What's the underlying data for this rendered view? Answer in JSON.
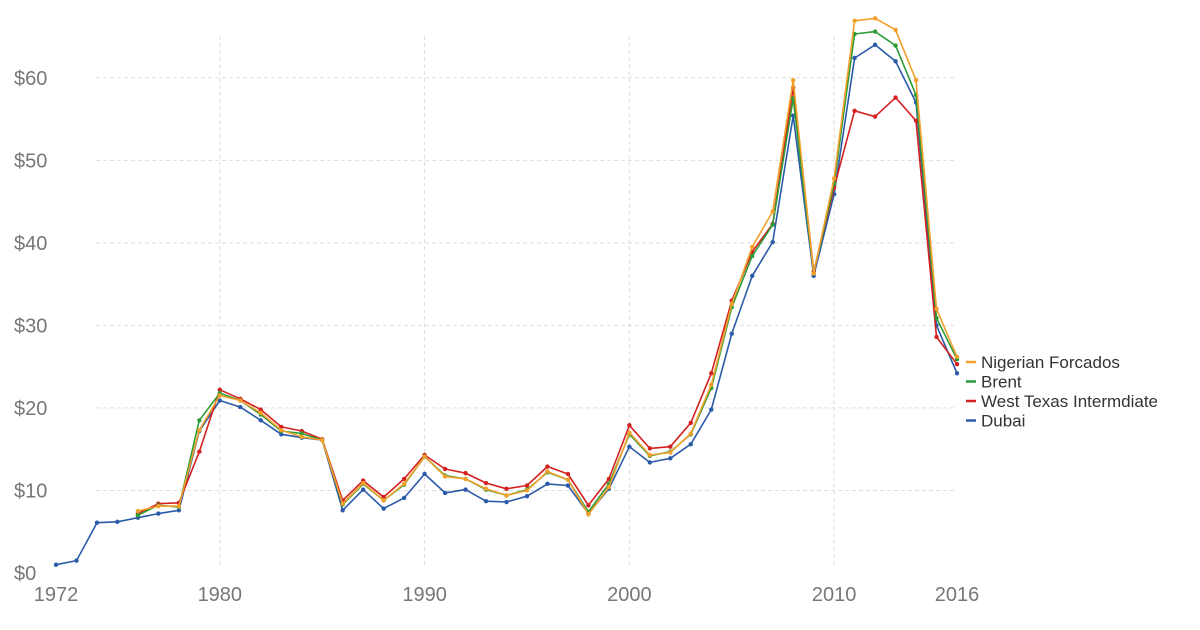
{
  "chart_data": {
    "type": "line",
    "title": "",
    "xlabel": "",
    "ylabel": "",
    "xlim": [
      1972,
      2016
    ],
    "ylim": [
      0,
      67
    ],
    "x_ticks": [
      {
        "value": 1972,
        "label": "1972"
      },
      {
        "value": 1980,
        "label": "1980"
      },
      {
        "value": 1990,
        "label": "1990"
      },
      {
        "value": 2000,
        "label": "2000"
      },
      {
        "value": 2010,
        "label": "2010"
      },
      {
        "value": 2016,
        "label": "2016"
      }
    ],
    "y_ticks": [
      {
        "value": 0,
        "label": "$0"
      },
      {
        "value": 10,
        "label": "$10"
      },
      {
        "value": 20,
        "label": "$20"
      },
      {
        "value": 30,
        "label": "$30"
      },
      {
        "value": 40,
        "label": "$40"
      },
      {
        "value": 50,
        "label": "$50"
      },
      {
        "value": 60,
        "label": "$60"
      }
    ],
    "grid": true,
    "legend_position": "right",
    "series": [
      {
        "name": "Dubai",
        "color": "#2b5ba8",
        "x": [
          1972,
          1973,
          1974,
          1975,
          1976,
          1977,
          1978,
          1979,
          1980,
          1981,
          1982,
          1983,
          1984,
          1985,
          1986,
          1987,
          1988,
          1989,
          1990,
          1991,
          1992,
          1993,
          1994,
          1995,
          1996,
          1997,
          1998,
          1999,
          2000,
          2001,
          2002,
          2003,
          2004,
          2005,
          2006,
          2007,
          2008,
          2009,
          2010,
          2011,
          2012,
          2013,
          2014,
          2015,
          2016
        ],
        "y": [
          1.0,
          1.5,
          6.1,
          6.2,
          6.7,
          7.2,
          7.6,
          17.2,
          20.9,
          20.1,
          18.5,
          16.8,
          16.4,
          16.1,
          7.6,
          10.1,
          7.8,
          9.1,
          12.0,
          9.7,
          10.1,
          8.7,
          8.6,
          9.3,
          10.8,
          10.6,
          7.2,
          10.2,
          15.3,
          13.4,
          13.9,
          15.6,
          19.8,
          29.0,
          36.0,
          40.1,
          55.4,
          36.0,
          45.9,
          62.4,
          64.0,
          62.0,
          57.0,
          30.0,
          24.2
        ]
      },
      {
        "name": "West Texas Intermdiate",
        "color": "#d42020",
        "x": [
          1976,
          1977,
          1978,
          1979,
          1980,
          1981,
          1982,
          1983,
          1984,
          1985,
          1986,
          1987,
          1988,
          1989,
          1990,
          1991,
          1992,
          1993,
          1994,
          1995,
          1996,
          1997,
          1998,
          1999,
          2000,
          2001,
          2002,
          2003,
          2004,
          2005,
          2006,
          2007,
          2008,
          2009,
          2010,
          2011,
          2012,
          2013,
          2014,
          2015,
          2016
        ],
        "y": [
          7.2,
          8.4,
          8.5,
          14.7,
          22.2,
          21.1,
          19.8,
          17.7,
          17.2,
          16.2,
          8.8,
          11.2,
          9.2,
          11.4,
          14.3,
          12.6,
          12.1,
          10.9,
          10.2,
          10.6,
          12.9,
          12.0,
          8.2,
          11.4,
          17.9,
          15.1,
          15.3,
          18.2,
          24.2,
          33.0,
          38.9,
          42.3,
          58.8,
          36.5,
          46.7,
          56.0,
          55.3,
          57.6,
          54.8,
          28.6,
          25.3
        ]
      },
      {
        "name": "Brent",
        "color": "#2e9c36",
        "x": [
          1976,
          1977,
          1978,
          1979,
          1980,
          1981,
          1982,
          1983,
          1984,
          1985,
          1986,
          1987,
          1988,
          1989,
          1990,
          1991,
          1992,
          1993,
          1994,
          1995,
          1996,
          1997,
          1998,
          1999,
          2000,
          2001,
          2002,
          2003,
          2004,
          2005,
          2006,
          2007,
          2008,
          2009,
          2010,
          2011,
          2012,
          2013,
          2014,
          2015,
          2016
        ],
        "y": [
          7.0,
          8.2,
          8.0,
          18.5,
          21.8,
          20.9,
          19.2,
          17.2,
          16.9,
          16.1,
          8.3,
          10.8,
          8.8,
          10.7,
          14.1,
          11.8,
          11.4,
          10.1,
          9.4,
          10.1,
          12.2,
          11.3,
          7.4,
          10.8,
          16.8,
          14.2,
          14.7,
          16.8,
          22.4,
          32.2,
          38.4,
          42.2,
          57.5,
          36.3,
          47.2,
          65.3,
          65.6,
          63.9,
          57.9,
          30.9,
          25.9
        ]
      },
      {
        "name": "Nigerian Forcados",
        "color": "#f2a02a",
        "x": [
          1976,
          1977,
          1978,
          1979,
          1980,
          1981,
          1982,
          1983,
          1984,
          1985,
          1986,
          1987,
          1988,
          1989,
          1990,
          1991,
          1992,
          1993,
          1994,
          1995,
          1996,
          1997,
          1998,
          1999,
          2000,
          2001,
          2002,
          2003,
          2004,
          2005,
          2006,
          2007,
          2008,
          2009,
          2010,
          2011,
          2012,
          2013,
          2014,
          2015,
          2016
        ],
        "y": [
          7.5,
          8.1,
          8.1,
          17.3,
          21.5,
          20.9,
          19.4,
          17.3,
          16.5,
          16.1,
          8.4,
          10.9,
          8.8,
          10.8,
          14.1,
          11.7,
          11.4,
          10.2,
          9.4,
          10.0,
          12.3,
          11.3,
          7.1,
          10.4,
          17.0,
          14.3,
          14.6,
          16.9,
          22.8,
          32.6,
          39.5,
          43.8,
          59.7,
          36.3,
          47.8,
          66.9,
          67.2,
          65.8,
          59.7,
          32.0,
          26.2
        ]
      }
    ],
    "legend_order": [
      "Nigerian Forcados",
      "Brent",
      "West Texas Intermdiate",
      "Dubai"
    ]
  }
}
